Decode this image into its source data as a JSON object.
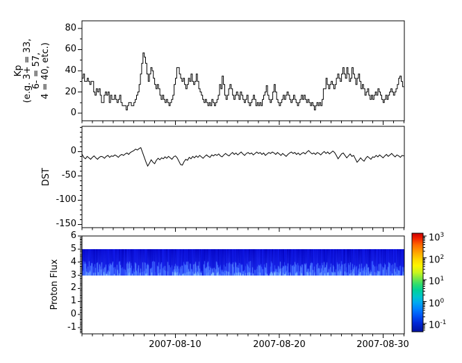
{
  "figure": {
    "background": "#ffffff",
    "axis_color": "#000000",
    "line_color": "#000000"
  },
  "xaxis": {
    "tick_labels": [
      "2007-08-10",
      "2007-08-20",
      "2007-08-30"
    ],
    "tick_day_offsets": [
      9,
      19,
      29
    ],
    "minor_step_days": 1,
    "range_days": [
      0,
      31.05
    ]
  },
  "chart_data": [
    {
      "type": "line",
      "id": "kp",
      "ylabel_lines": [
        "Kp",
        "(e.g. 3+ = 33,",
        "6- = 57,",
        "4 = 40, etc.)"
      ],
      "style": "step",
      "ylim": [
        -7.2,
        87.2
      ],
      "yticks": [
        0,
        20,
        40,
        60,
        80
      ],
      "yminor_step": 10,
      "x_step_days": 0.125,
      "values": [
        33,
        37,
        30,
        30,
        33,
        30,
        27,
        30,
        30,
        20,
        17,
        23,
        20,
        23,
        17,
        10,
        10,
        17,
        20,
        17,
        20,
        10,
        17,
        13,
        13,
        17,
        13,
        10,
        13,
        17,
        10,
        7,
        7,
        7,
        3,
        7,
        10,
        10,
        7,
        7,
        10,
        13,
        17,
        20,
        27,
        37,
        47,
        57,
        53,
        47,
        37,
        30,
        37,
        43,
        40,
        33,
        27,
        23,
        27,
        23,
        17,
        13,
        17,
        13,
        10,
        13,
        10,
        7,
        10,
        13,
        17,
        27,
        33,
        43,
        43,
        37,
        33,
        30,
        33,
        27,
        23,
        27,
        33,
        30,
        37,
        30,
        27,
        30,
        37,
        30,
        23,
        20,
        17,
        13,
        10,
        13,
        10,
        7,
        10,
        7,
        13,
        10,
        7,
        10,
        13,
        17,
        27,
        23,
        35,
        27,
        17,
        13,
        17,
        23,
        27,
        23,
        17,
        13,
        17,
        20,
        17,
        13,
        20,
        17,
        13,
        10,
        13,
        17,
        10,
        7,
        10,
        13,
        17,
        13,
        7,
        10,
        7,
        10,
        7,
        13,
        17,
        20,
        26,
        17,
        13,
        10,
        13,
        20,
        27,
        20,
        13,
        10,
        7,
        10,
        13,
        17,
        13,
        17,
        20,
        17,
        13,
        10,
        13,
        17,
        13,
        10,
        7,
        10,
        13,
        17,
        13,
        17,
        13,
        10,
        13,
        10,
        7,
        10,
        7,
        3,
        7,
        10,
        7,
        10,
        7,
        13,
        23,
        23,
        33,
        27,
        23,
        27,
        30,
        27,
        23,
        27,
        33,
        37,
        33,
        30,
        37,
        43,
        37,
        33,
        43,
        37,
        30,
        33,
        43,
        37,
        33,
        27,
        33,
        37,
        30,
        23,
        27,
        23,
        17,
        20,
        23,
        17,
        13,
        17,
        13,
        17,
        20,
        17,
        23,
        20,
        17,
        13,
        10,
        13,
        17,
        13,
        17,
        20,
        23,
        20,
        17,
        20,
        23,
        27,
        33,
        35,
        30,
        25
      ]
    },
    {
      "type": "line",
      "id": "dst",
      "ylabel": "DST",
      "style": "line",
      "ylim": [
        -156.7,
        51.9
      ],
      "yticks": [
        0,
        -50,
        -100,
        -150
      ],
      "yminor_step": 10,
      "x_step_days": 0.166667,
      "values": [
        -5,
        -12,
        -15,
        -10,
        -13,
        -16,
        -12,
        -9,
        -13,
        -16,
        -12,
        -10,
        -11,
        -14,
        -10,
        -8,
        -12,
        -9,
        -10,
        -7,
        -9,
        -12,
        -8,
        -6,
        -8,
        -5,
        -3,
        -6,
        -2,
        0,
        2,
        5,
        3,
        6,
        8,
        -2,
        -12,
        -22,
        -30,
        -24,
        -17,
        -22,
        -25,
        -18,
        -14,
        -17,
        -13,
        -15,
        -11,
        -14,
        -10,
        -13,
        -16,
        -11,
        -9,
        -13,
        -20,
        -27,
        -28,
        -21,
        -16,
        -18,
        -12,
        -15,
        -10,
        -13,
        -9,
        -12,
        -8,
        -11,
        -14,
        -10,
        -7,
        -10,
        -12,
        -7,
        -9,
        -6,
        -8,
        -5,
        -9,
        -11,
        -7,
        -4,
        -7,
        -9,
        -5,
        -2,
        -6,
        -3,
        -7,
        -4,
        -1,
        -5,
        -8,
        -4,
        -2,
        -5,
        -3,
        -7,
        -4,
        -1,
        -4,
        -2,
        -6,
        -3,
        -8,
        -5,
        -2,
        -4,
        -1,
        -3,
        -6,
        -2,
        -5,
        -8,
        -4,
        -7,
        -10,
        -6,
        -3,
        -1,
        -4,
        -2,
        -6,
        -3,
        -7,
        -4,
        -2,
        -5,
        -1,
        2,
        -2,
        -5,
        -3,
        -6,
        -2,
        -4,
        -7,
        -3,
        0,
        -4,
        -1,
        -5,
        -2,
        1,
        -2,
        -8,
        -15,
        -10,
        -5,
        -3,
        -8,
        -13,
        -9,
        -5,
        -10,
        -8,
        -15,
        -22,
        -18,
        -13,
        -17,
        -20,
        -14,
        -10,
        -13,
        -16,
        -11,
        -12,
        -8,
        -11,
        -7,
        -10,
        -13,
        -9,
        -6,
        -10,
        -7,
        -4,
        -8,
        -11,
        -7,
        -9,
        -12,
        -8,
        -9
      ]
    },
    {
      "type": "heatmap",
      "id": "proton_flux",
      "ylabel": "Proton Flux",
      "ylim": [
        -1.48,
        6
      ],
      "yticks": [
        6,
        5,
        4,
        3,
        2,
        1,
        0,
        -1
      ],
      "yminor_step": 0.1,
      "band": {
        "y_range": [
          3,
          5
        ],
        "description": "continuous vertical-streaked blue band, flux approx 0.1-1 (blue on colorbar), brighter light-blue streaks near lower edge",
        "seed": 7,
        "base_top_colors": [
          "#0202be",
          "#1018ea"
        ],
        "base_bottom_colors": [
          "#0a16dd",
          "#2b3cf8"
        ],
        "streak_colors": [
          "#2d50ff",
          "#5a8cff"
        ],
        "bright_bottom_colors": [
          "#6aa6ff",
          "#8cc2ff"
        ],
        "streak_probability": 0.8
      },
      "colorbar": {
        "scale": "log",
        "tick_exponents": [
          3,
          2,
          1,
          0,
          -1
        ],
        "tick_labels": [
          "10^3",
          "10^2",
          "10^1",
          "10^0",
          "10^-1"
        ],
        "colormap": "jet",
        "gradient_stops": [
          [
            0.0,
            "#c80000"
          ],
          [
            0.05,
            "#f01e00"
          ],
          [
            0.12,
            "#ff6a00"
          ],
          [
            0.2,
            "#ffa700"
          ],
          [
            0.27,
            "#ffd900"
          ],
          [
            0.33,
            "#fdf500"
          ],
          [
            0.4,
            "#c8f51e"
          ],
          [
            0.46,
            "#78e846"
          ],
          [
            0.52,
            "#2edd6e"
          ],
          [
            0.58,
            "#00cf9b"
          ],
          [
            0.64,
            "#00c6c8"
          ],
          [
            0.7,
            "#00abef"
          ],
          [
            0.77,
            "#0080ff"
          ],
          [
            0.84,
            "#0052f5"
          ],
          [
            0.91,
            "#0028d8"
          ],
          [
            1.0,
            "#0011a0"
          ]
        ]
      }
    }
  ]
}
